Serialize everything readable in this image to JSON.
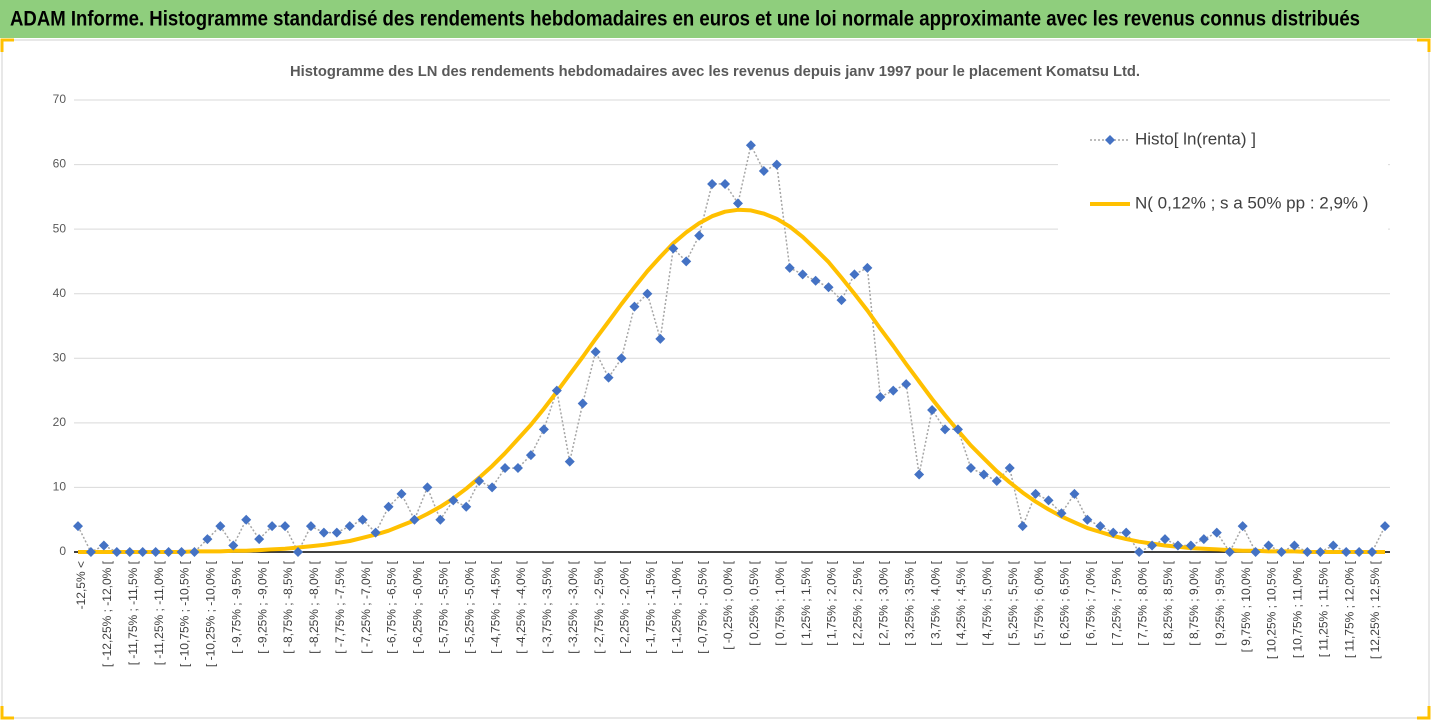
{
  "header": {
    "title": "ADAM Informe. Histogramme standardisé des rendements hebdomadaires en euros et une loi normale approximante avec les revenus connus distribués"
  },
  "chart_data": {
    "type": "line",
    "title": "Histogramme des LN des rendements hebdomadaires avec les revenus depuis janv 1997 pour le placement Komatsu Ltd.",
    "categories": [
      "-12,5% <",
      null,
      "[ -12,25% ; -12,0% [",
      null,
      "[ -11,75% ; -11,5% [",
      null,
      "[ -11,25% ; -11,0% [",
      null,
      "[ -10,75% ; -10,5% [",
      null,
      "[ -10,25% ; -10,0% [",
      null,
      "[ -9,75% ; -9,5% [",
      null,
      "[ -9,25% ; -9,0% [",
      null,
      "[ -8,75% ; -8,5% [",
      null,
      "[ -8,25% ; -8,0% [",
      null,
      "[ -7,75% ; -7,5% [",
      null,
      "[ -7,25% ; -7,0% [",
      null,
      "[ -6,75% ; -6,5% [",
      null,
      "[ -6,25% ; -6,0% [",
      null,
      "[ -5,75% ; -5,5% [",
      null,
      "[ -5,25% ; -5,0% [",
      null,
      "[ -4,75% ; -4,5% [",
      null,
      "[ -4,25% ; -4,0% [",
      null,
      "[ -3,75% ; -3,5% [",
      null,
      "[ -3,25% ; -3,0% [",
      null,
      "[ -2,75% ; -2,5% [",
      null,
      "[ -2,25% ; -2,0% [",
      null,
      "[ -1,75% ; -1,5% [",
      null,
      "[ -1,25% ; -1,0% [",
      null,
      "[ -0,75% ; -0,5% [",
      null,
      "[ -0,25% ; 0,0% [",
      null,
      "[ 0,25% ; 0,5% [",
      null,
      "[ 0,75% ; 1,0% [",
      null,
      "[ 1,25% ; 1,5% [",
      null,
      "[ 1,75% ; 2,0% [",
      null,
      "[ 2,25% ; 2,5% [",
      null,
      "[ 2,75% ; 3,0% [",
      null,
      "[ 3,25% ; 3,5% [",
      null,
      "[ 3,75% ; 4,0% [",
      null,
      "[ 4,25% ; 4,5% [",
      null,
      "[ 4,75% ; 5,0% [",
      null,
      "[ 5,25% ; 5,5% [",
      null,
      "[ 5,75% ; 6,0% [",
      null,
      "[ 6,25% ; 6,5% [",
      null,
      "[ 6,75% ; 7,0% [",
      null,
      "[ 7,25% ; 7,5% [",
      null,
      "[ 7,75% ; 8,0% [",
      null,
      "[ 8,25% ; 8,5% [",
      null,
      "[ 8,75% ; 9,0% [",
      null,
      "[ 9,25% ; 9,5% [",
      null,
      "[ 9,75% ; 10,0% [",
      null,
      "[ 10,25% ; 10,5% [",
      null,
      "[ 10,75% ; 11,0% [",
      null,
      "[ 11,25% ; 11,5% [",
      null,
      "[ 11,75% ; 12,0% [",
      null,
      "[ 12,25% ; 12,5% [",
      null
    ],
    "series": [
      {
        "name": "Histo[ ln(renta) ]",
        "color": "#4472c4",
        "values": [
          4,
          0,
          1,
          0,
          0,
          0,
          0,
          0,
          0,
          0,
          2,
          4,
          1,
          5,
          2,
          4,
          4,
          0,
          4,
          3,
          3,
          4,
          5,
          3,
          7,
          9,
          5,
          10,
          5,
          8,
          7,
          11,
          10,
          13,
          13,
          15,
          19,
          25,
          14,
          23,
          31,
          27,
          30,
          38,
          40,
          33,
          47,
          45,
          49,
          57,
          57,
          54,
          63,
          59,
          60,
          44,
          43,
          42,
          41,
          39,
          43,
          44,
          24,
          25,
          26,
          12,
          22,
          19,
          19,
          13,
          12,
          11,
          13,
          4,
          9,
          8,
          6,
          9,
          5,
          4,
          3,
          3,
          0,
          1,
          2,
          1,
          1,
          2,
          3,
          0,
          4,
          0,
          1,
          0,
          1,
          0,
          0,
          1,
          0,
          0,
          0,
          4
        ]
      },
      {
        "name": "N( 0,12% ; s a 50% pp : 2,9% )",
        "color": "#ffc000",
        "values": [
          0,
          0,
          0,
          0,
          0,
          0,
          0,
          0,
          0,
          0.1,
          0.1,
          0.1,
          0.2,
          0.2,
          0.3,
          0.4,
          0.5,
          0.7,
          0.9,
          1.1,
          1.4,
          1.7,
          2.2,
          2.7,
          3.3,
          4.1,
          4.9,
          5.9,
          7.0,
          8.3,
          9.8,
          11.5,
          13.3,
          15.3,
          17.5,
          19.7,
          22.2,
          24.8,
          27.5,
          30.2,
          33.0,
          35.7,
          38.4,
          41.0,
          43.5,
          45.7,
          47.8,
          49.5,
          50.9,
          52.0,
          52.7,
          53.0,
          52.9,
          52.4,
          51.6,
          50.4,
          48.8,
          46.9,
          44.9,
          42.5,
          40.0,
          37.4,
          34.6,
          31.9,
          29.1,
          26.4,
          23.7,
          21.2,
          18.8,
          16.5,
          14.5,
          12.5,
          10.8,
          9.2,
          7.8,
          6.6,
          5.5,
          4.6,
          3.7,
          3.1,
          2.5,
          2.0,
          1.6,
          1.3,
          1.0,
          0.8,
          0.6,
          0.5,
          0.4,
          0.3,
          0.2,
          0.2,
          0.1,
          0.1,
          0.1,
          0,
          0,
          0,
          0,
          0,
          0,
          0
        ]
      }
    ],
    "ylim": [
      0,
      70
    ],
    "yticks": [
      0,
      10,
      20,
      30,
      40,
      50,
      60,
      70
    ],
    "grid": true,
    "legend": "upper right"
  }
}
